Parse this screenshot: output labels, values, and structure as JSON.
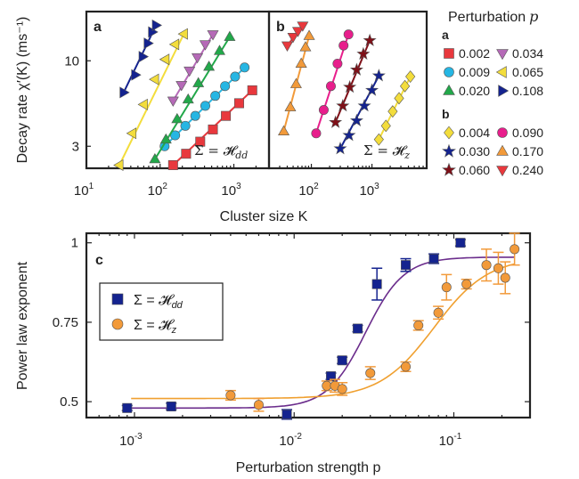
{
  "chart_data": [
    {
      "panel": "a",
      "type": "scatter",
      "xlabel": "",
      "ylabel": "Decay rate  χ′(K) (ms⁻¹)",
      "x_scale": "log",
      "y_scale": "log",
      "xlim": [
        10,
        3000
      ],
      "ylim": [
        2.2,
        20
      ],
      "xticks": [
        10,
        100,
        1000
      ],
      "xtick_labels": [
        "10",
        "10",
        "10"
      ],
      "xtick_exp": [
        "1",
        "2",
        "3"
      ],
      "yticks": [
        3,
        10
      ],
      "ytick_labels": [
        "3",
        "10"
      ],
      "annotation": "Σ = 𝓗",
      "annotation_sub": "dd",
      "series": [
        {
          "name": "0.002",
          "color": "#e8383d",
          "marker": "square",
          "x": [
            150,
            225,
            350,
            520,
            780,
            1180,
            1780
          ],
          "y": [
            2.3,
            2.7,
            3.2,
            3.8,
            4.6,
            5.5,
            6.6
          ],
          "fit": {
            "x": [
              150,
              1780
            ],
            "y": [
              2.3,
              6.6
            ]
          }
        },
        {
          "name": "0.009",
          "color": "#26b6e3",
          "marker": "circle",
          "x": [
            115,
            160,
            220,
            300,
            410,
            560,
            760,
            1040,
            1400
          ],
          "y": [
            3.0,
            3.5,
            4.0,
            4.6,
            5.3,
            6.1,
            7.0,
            8.0,
            9.1
          ],
          "fit": {
            "x": [
              115,
              1400
            ],
            "y": [
              3.0,
              9.1
            ]
          }
        },
        {
          "name": "0.020",
          "color": "#22a84a",
          "marker": "triangle-up",
          "x": [
            85,
            120,
            170,
            240,
            330,
            460,
            640,
            880
          ],
          "y": [
            2.5,
            3.3,
            4.4,
            5.8,
            7.3,
            9.2,
            11.5,
            14.0
          ],
          "fit": {
            "x": [
              85,
              880
            ],
            "y": [
              2.5,
              14.0
            ]
          }
        },
        {
          "name": "0.034",
          "color": "#b56ab7",
          "marker": "triangle-down",
          "x": [
            150,
            195,
            250,
            320,
            410,
            520
          ],
          "y": [
            5.7,
            7.1,
            8.7,
            10.5,
            12.6,
            14.5
          ],
          "fit": {
            "x": [
              150,
              520
            ],
            "y": [
              5.7,
              14.5
            ]
          }
        },
        {
          "name": "0.065",
          "color": "#f3dd3c",
          "marker": "triangle-left",
          "x": [
            28,
            42,
            60,
            85,
            118,
            160,
            210
          ],
          "y": [
            2.3,
            3.6,
            5.4,
            7.7,
            10.2,
            12.6,
            14.6
          ],
          "fit": {
            "x": [
              28,
              210
            ],
            "y": [
              2.3,
              14.6
            ]
          }
        },
        {
          "name": "0.108",
          "color": "#14238f",
          "marker": "triangle-right",
          "x": [
            32,
            46,
            58,
            68,
            78,
            88
          ],
          "y": [
            6.4,
            8.2,
            10.6,
            12.8,
            15.0,
            16.5
          ],
          "fit": {
            "x": [
              32,
              88
            ],
            "y": [
              6.4,
              16.5
            ]
          }
        }
      ]
    },
    {
      "panel": "b",
      "type": "scatter",
      "xlabel": "Cluster size  K",
      "x_scale": "log",
      "y_scale": "log",
      "xlim": [
        20,
        8000
      ],
      "ylim": [
        2.2,
        20
      ],
      "xticks": [
        100,
        1000
      ],
      "xtick_labels": [
        "10",
        "10"
      ],
      "xtick_exp": [
        "2",
        "3"
      ],
      "annotation": "Σ = 𝓗",
      "annotation_sub": "z",
      "series": [
        {
          "name": "0.004",
          "color": "#f3dd3c",
          "marker": "diamond",
          "x": [
            1300,
            1700,
            2200,
            2800,
            3500,
            4300
          ],
          "y": [
            3.3,
            4.0,
            4.9,
            5.9,
            7.0,
            8.0
          ],
          "fit": {
            "x": [
              1300,
              4300
            ],
            "y": [
              3.3,
              8.0
            ]
          }
        },
        {
          "name": "0.030",
          "color": "#14238f",
          "marker": "star",
          "x": [
            300,
            420,
            560,
            750,
            1000,
            1300
          ],
          "y": [
            2.9,
            3.5,
            4.3,
            5.3,
            6.6,
            8.1
          ],
          "fit": {
            "x": [
              300,
              1300
            ],
            "y": [
              2.9,
              8.1
            ]
          }
        },
        {
          "name": "0.060",
          "color": "#7f1018",
          "marker": "star",
          "x": [
            250,
            330,
            430,
            560,
            720,
            920
          ],
          "y": [
            4.2,
            5.3,
            6.9,
            8.8,
            11.0,
            13.3
          ],
          "fit": {
            "x": [
              250,
              920
            ],
            "y": [
              4.2,
              13.3
            ]
          }
        },
        {
          "name": "0.090",
          "color": "#e81e8c",
          "marker": "circle",
          "x": [
            120,
            160,
            210,
            270,
            340,
            410
          ],
          "y": [
            3.6,
            5.0,
            7.0,
            9.6,
            12.4,
            14.5
          ],
          "fit": {
            "x": [
              120,
              410
            ],
            "y": [
              3.6,
              14.5
            ]
          }
        },
        {
          "name": "0.170",
          "color": "#f29a3a",
          "marker": "triangle-up",
          "x": [
            35,
            45,
            56,
            68,
            80,
            92
          ],
          "y": [
            3.7,
            5.2,
            7.2,
            9.6,
            12.1,
            14.2
          ],
          "fit": {
            "x": [
              35,
              92
            ],
            "y": [
              3.7,
              14.2
            ]
          }
        },
        {
          "name": "0.240",
          "color": "#e8383d",
          "marker": "triangle-down",
          "x": [
            40,
            50,
            60,
            72
          ],
          "y": [
            12.4,
            14.0,
            15.2,
            16.4
          ],
          "fit": {
            "x": [
              40,
              72
            ],
            "y": [
              12.4,
              16.4
            ]
          }
        }
      ]
    },
    {
      "panel": "c",
      "type": "scatter",
      "xlabel": "Perturbation strength  p",
      "ylabel": "Power law exponent",
      "x_scale": "log",
      "xlim": [
        0.0005,
        0.3
      ],
      "ylim": [
        0.45,
        1.03
      ],
      "xticks": [
        0.001,
        0.01,
        0.1
      ],
      "xtick_labels": [
        "10",
        "10",
        "10"
      ],
      "xtick_exp": [
        "-3",
        "-2",
        "-1"
      ],
      "yticks": [
        0.5,
        0.75,
        1
      ],
      "ytick_labels": [
        "0.5",
        "0.75",
        "1"
      ],
      "legend_position": "center-left",
      "series": [
        {
          "name": "Σ = 𝓗",
          "name_sub": "dd",
          "color": "#14238f",
          "marker": "square",
          "x": [
            0.0009,
            0.0017,
            0.009,
            0.017,
            0.02,
            0.025,
            0.033,
            0.05,
            0.075,
            0.11
          ],
          "y": [
            0.48,
            0.485,
            0.46,
            0.58,
            0.63,
            0.73,
            0.87,
            0.93,
            0.95,
            1.0
          ],
          "err": [
            0.008,
            0.01,
            0.015,
            0.01,
            0.01,
            0.01,
            0.05,
            0.02,
            0.015,
            0.01
          ],
          "fit_sigmoid": {
            "low": 0.48,
            "high": 0.955,
            "x0": 0.028,
            "width": 0.12
          }
        },
        {
          "name": "Σ = 𝓗",
          "name_sub": "z",
          "color": "#f29a3a",
          "marker": "circle",
          "x": [
            0.004,
            0.006,
            0.016,
            0.018,
            0.02,
            0.03,
            0.05,
            0.06,
            0.08,
            0.09,
            0.12,
            0.16,
            0.19,
            0.21,
            0.24
          ],
          "y": [
            0.52,
            0.49,
            0.55,
            0.55,
            0.54,
            0.59,
            0.61,
            0.74,
            0.78,
            0.86,
            0.87,
            0.93,
            0.92,
            0.89,
            0.98
          ],
          "err": [
            0.015,
            0.02,
            0.015,
            0.02,
            0.02,
            0.02,
            0.015,
            0.015,
            0.02,
            0.04,
            0.015,
            0.05,
            0.05,
            0.05,
            0.05
          ],
          "fit_sigmoid": {
            "low": 0.51,
            "high": 0.955,
            "x0": 0.075,
            "width": 0.17
          }
        }
      ]
    }
  ],
  "legend_ab": {
    "title": "Perturbation",
    "title_var": "p",
    "group_a": "a",
    "group_b": "b"
  },
  "panel_labels": {
    "a": "a",
    "b": "b",
    "c": "c"
  }
}
